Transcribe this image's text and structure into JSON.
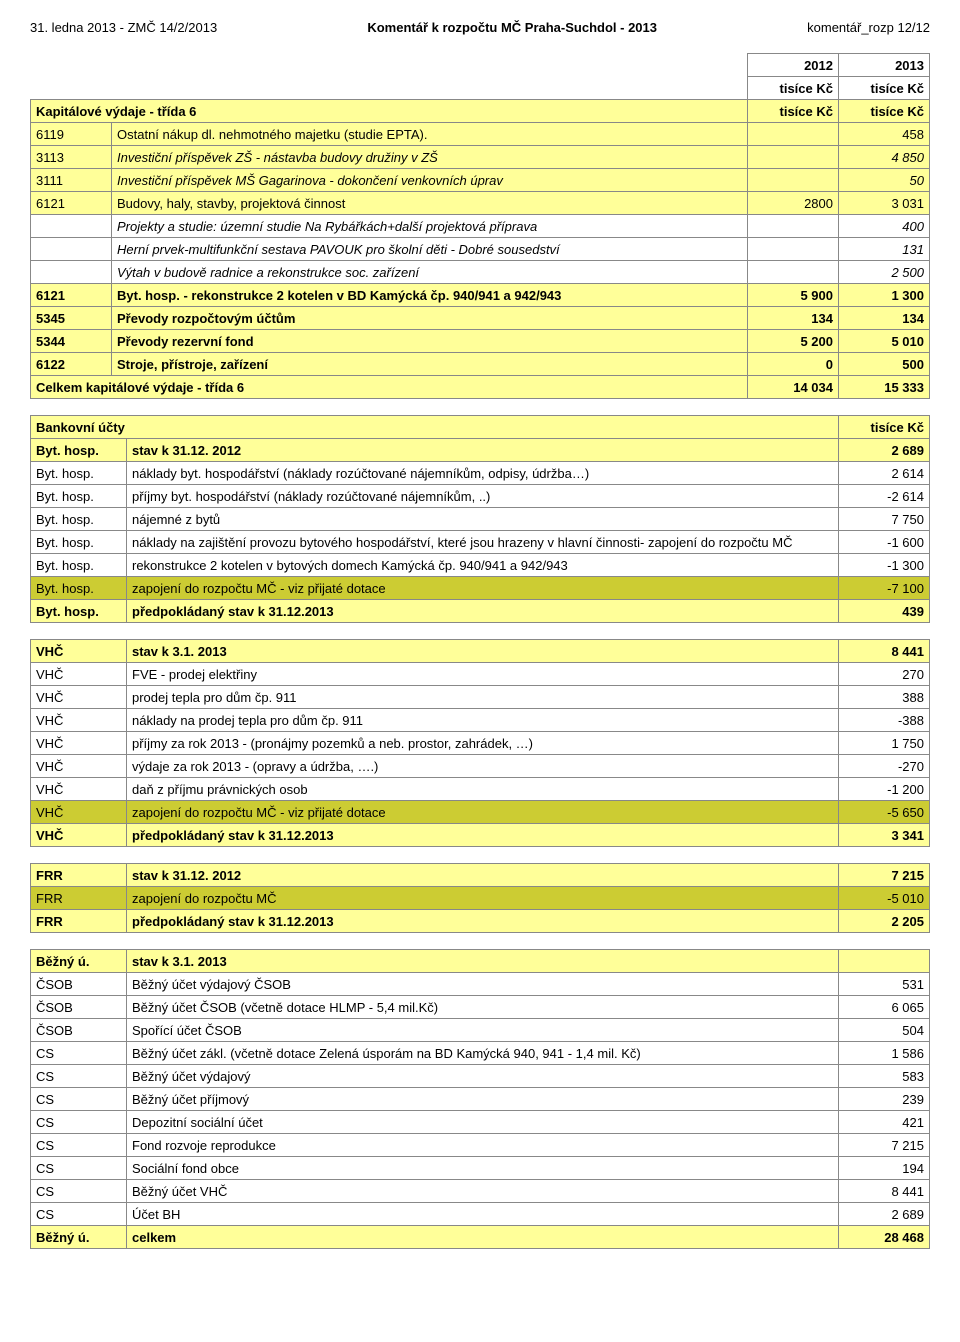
{
  "header": {
    "left": "31. ledna 2013 - ZMČ 14/2/2013",
    "center": "Komentář k rozpočtu MČ Praha-Suchdol - 2013",
    "right": "komentář_rozp 12/12"
  },
  "table1": {
    "yearColsTop": [
      "2012",
      "2013"
    ],
    "yearColsUnit": [
      "tisíce Kč",
      "tisíce Kč"
    ],
    "titleRow": {
      "label": "Kapitálové výdaje - třída 6",
      "c1": "tisíce Kč",
      "c2": "tisíce Kč"
    },
    "rows": [
      {
        "code": "6119",
        "label": "Ostatní nákup dl. nehmotného majetku (studie EPTA).",
        "c1": "",
        "c2": "458",
        "bg": "yellow"
      },
      {
        "code": "3113",
        "label": "Investiční příspěvek ZŠ - nástavba budovy družiny v ZŠ",
        "c1": "",
        "c2": "4 850",
        "bg": "yellow",
        "italic": true
      },
      {
        "code": "3111",
        "label": "Investiční příspěvek MŠ Gagarinova - dokončení venkovních úprav",
        "c1": "",
        "c2": "50",
        "bg": "yellow",
        "italic": true
      },
      {
        "code": "6121",
        "label": "Budovy, haly, stavby, projektová činnost",
        "c1": "2800",
        "c2": "3 031",
        "bg": "yellow"
      },
      {
        "code": "",
        "label": "Projekty a studie: územní studie Na Rybářkách+další projektová příprava",
        "c1": "",
        "c2": "400",
        "bg": "",
        "italic": true
      },
      {
        "code": "",
        "label": "Herní prvek-multifunkční sestava PAVOUK pro školní děti - Dobré sousedství",
        "c1": "",
        "c2": "131",
        "bg": "",
        "italic": true
      },
      {
        "code": "",
        "label": "Výtah v budově radnice a rekonstrukce soc. zařízení",
        "c1": "",
        "c2": "2 500",
        "bg": "",
        "italic": true
      },
      {
        "code": "6121",
        "label": "Byt. hosp. - rekonstrukce 2 kotelen v BD Kamýcká čp. 940/941 a 942/943",
        "c1": "5 900",
        "c2": "1 300",
        "bg": "yellow",
        "bold": true
      },
      {
        "code": "5345",
        "label": "Převody rozpočtovým účtům",
        "c1": "134",
        "c2": "134",
        "bg": "yellow",
        "bold": true
      },
      {
        "code": "5344",
        "label": "Převody rezervní fond",
        "c1": "5 200",
        "c2": "5 010",
        "bg": "yellow",
        "bold": true
      },
      {
        "code": "6122",
        "label": "Stroje, přístroje, zařízení",
        "c1": "0",
        "c2": "500",
        "bg": "yellow",
        "bold": true
      }
    ],
    "totalRow": {
      "label": "Celkem kapitálové výdaje - třída 6",
      "c1": "14 034",
      "c2": "15 333"
    }
  },
  "table2": {
    "title": "Bankovní účty",
    "unit": "tisíce Kč",
    "rows": [
      {
        "code": "Byt. hosp.",
        "label": "stav k 31.12. 2012",
        "val": "2 689",
        "bg": "yellow",
        "bold": true
      },
      {
        "code": "Byt. hosp.",
        "label": "náklady byt. hospodářství (náklady rozúčtované nájemníkům, odpisy, údržba…)",
        "val": "2 614",
        "bg": ""
      },
      {
        "code": "Byt. hosp.",
        "label": "příjmy  byt. hospodářství (náklady rozúčtované nájemníkům, ..)",
        "val": "-2 614",
        "bg": ""
      },
      {
        "code": "Byt. hosp.",
        "label": "nájemné z bytů",
        "val": "7 750",
        "bg": ""
      },
      {
        "code": "Byt. hosp.",
        "label": "náklady na zajištění provozu bytového hospodářství, které jsou hrazeny v hlavní činnosti- zapojení do rozpočtu MČ",
        "val": "-1 600",
        "bg": ""
      },
      {
        "code": "Byt. hosp.",
        "label": "rekonstrukce 2 kotelen v bytových domech Kamýcká čp. 940/941 a 942/943",
        "val": "-1 300",
        "bg": ""
      },
      {
        "code": "Byt. hosp.",
        "label": "zapojení do rozpočtu MČ - viz přijaté dotace",
        "val": "-7 100",
        "bg": "olive"
      },
      {
        "code": "Byt. hosp.",
        "label": "předpokládaný stav k 31.12.2013",
        "val": "439",
        "bg": "yellow",
        "bold": true
      }
    ]
  },
  "table3": {
    "rows": [
      {
        "code": "VHČ",
        "label": "stav k 3.1. 2013",
        "val": "8 441",
        "bg": "yellow",
        "bold": true
      },
      {
        "code": "VHČ",
        "label": "FVE - prodej elektřiny",
        "val": "270",
        "bg": ""
      },
      {
        "code": "VHČ",
        "label": "prodej tepla pro dům čp. 911",
        "val": "388",
        "bg": ""
      },
      {
        "code": "VHČ",
        "label": "náklady na prodej tepla pro dům čp. 911",
        "val": "-388",
        "bg": ""
      },
      {
        "code": "VHČ",
        "label": "příjmy za rok 2013 - (pronájmy pozemků a neb. prostor, zahrádek, …)",
        "val": "1 750",
        "bg": ""
      },
      {
        "code": "VHČ",
        "label": "výdaje  za rok 2013 - (opravy a údržba, ….)",
        "val": "-270",
        "bg": ""
      },
      {
        "code": "VHČ",
        "label": "daň z příjmu právnických osob",
        "val": "-1 200",
        "bg": ""
      },
      {
        "code": "VHČ",
        "label": "zapojení do rozpočtu MČ - viz přijaté dotace",
        "val": "-5 650",
        "bg": "olive"
      },
      {
        "code": "VHČ",
        "label": "předpokládaný stav k 31.12.2013",
        "val": "3 341",
        "bg": "yellow",
        "bold": true
      }
    ]
  },
  "table4": {
    "rows": [
      {
        "code": "FRR",
        "label": "stav k 31.12. 2012",
        "val": "7 215",
        "bg": "yellow",
        "bold": true
      },
      {
        "code": "FRR",
        "label": "zapojení do rozpočtu MČ",
        "val": "-5 010",
        "bg": "olive"
      },
      {
        "code": "FRR",
        "label": "předpokládaný stav k 31.12.2013",
        "val": "2 205",
        "bg": "yellow",
        "bold": true
      }
    ]
  },
  "table5": {
    "rows": [
      {
        "code": "Běžný ú.",
        "label": "stav k 3.1. 2013",
        "val": "",
        "bg": "yellow",
        "bold": true
      },
      {
        "code": "ČSOB",
        "label": "Běžný účet výdajový ČSOB",
        "val": "531",
        "bg": ""
      },
      {
        "code": "ČSOB",
        "label": "Běžný účet ČSOB  (včetně dotace HLMP - 5,4 mil.Kč)",
        "val": "6 065",
        "bg": ""
      },
      {
        "code": "ČSOB",
        "label": "Spořící účet ČSOB",
        "val": "504",
        "bg": ""
      },
      {
        "code": "CS",
        "label": "Běžný účet zákl. (včetně dotace Zelená úsporám na BD Kamýcká 940, 941 - 1,4 mil. Kč)",
        "val": "1 586",
        "bg": ""
      },
      {
        "code": "CS",
        "label": "Běžný účet výdajový",
        "val": "583",
        "bg": ""
      },
      {
        "code": "CS",
        "label": "Běžný účet příjmový",
        "val": "239",
        "bg": ""
      },
      {
        "code": "CS",
        "label": "Depozitní sociální účet",
        "val": "421",
        "bg": ""
      },
      {
        "code": "CS",
        "label": "Fond rozvoje reprodukce",
        "val": "7 215",
        "bg": ""
      },
      {
        "code": "CS",
        "label": "Sociální fond obce",
        "val": "194",
        "bg": ""
      },
      {
        "code": "CS",
        "label": "Běžný účet VHČ",
        "val": "8 441",
        "bg": ""
      },
      {
        "code": "CS",
        "label": "Účet BH",
        "val": "2 689",
        "bg": ""
      },
      {
        "code": "Běžný ú.",
        "label": "celkem",
        "val": "28 468",
        "bg": "yellow",
        "bold": true
      }
    ]
  }
}
